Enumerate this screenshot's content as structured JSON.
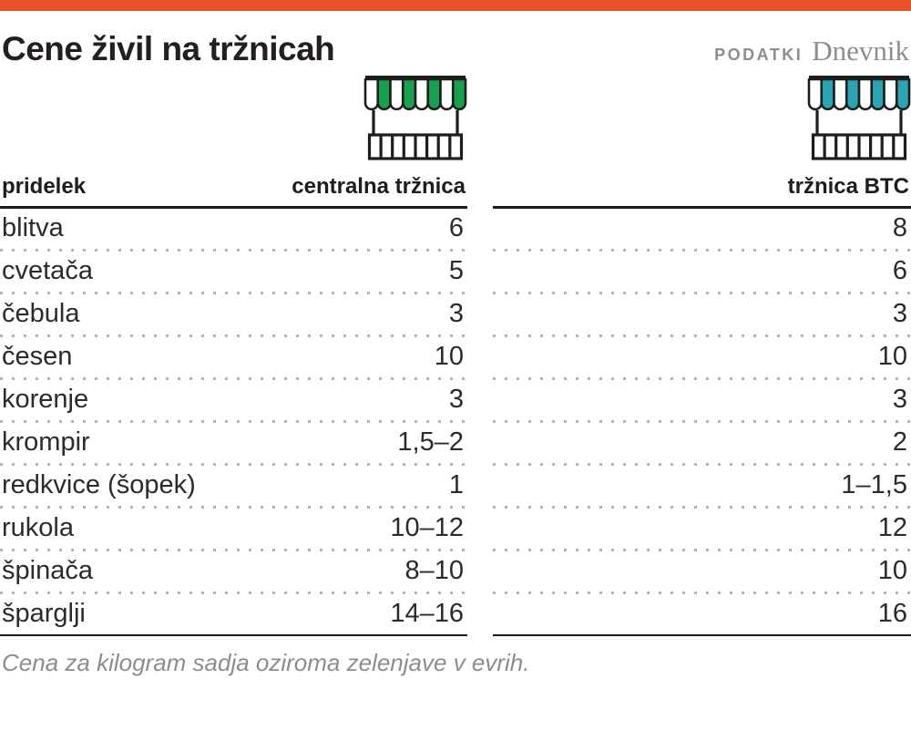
{
  "page": {
    "title": "Cene živil na tržnicah",
    "source_label": "PODATKI",
    "source_name": "Dnevnik",
    "footnote": "Cena za kilogram sadja oziroma zelenjave v evrih.",
    "accent_bar_color": "#e8512a"
  },
  "icons": {
    "central_market": {
      "name": "market-stall-icon",
      "stripe_color": "#17a14e"
    },
    "btc_market": {
      "name": "market-stall-icon",
      "stripe_color": "#2aa5b5"
    }
  },
  "table": {
    "left_header": {
      "col1": "pridelek",
      "col2": "centralna tržnica"
    },
    "right_header": {
      "col2": "tržnica BTC"
    }
  },
  "chart_data": {
    "type": "table",
    "title": "Cene živil na tržnicah",
    "columns": [
      "pridelek",
      "centralna tržnica",
      "tržnica BTC"
    ],
    "rows": [
      {
        "name": "blitva",
        "central": "6",
        "btc": "8"
      },
      {
        "name": "cvetača",
        "central": "5",
        "btc": "6"
      },
      {
        "name": "čebula",
        "central": "3",
        "btc": "3"
      },
      {
        "name": "česen",
        "central": "10",
        "btc": "10"
      },
      {
        "name": "korenje",
        "central": "3",
        "btc": "3"
      },
      {
        "name": "krompir",
        "central": "1,5–2",
        "btc": "2"
      },
      {
        "name": "redkvice (šopek)",
        "central": "1",
        "btc": "1–1,5"
      },
      {
        "name": "rukola",
        "central": "10–12",
        "btc": "12"
      },
      {
        "name": "špinača",
        "central": "8–10",
        "btc": "10"
      },
      {
        "name": "šparglji",
        "central": "14–16",
        "btc": "16"
      }
    ],
    "unit_note": "Cena za kilogram sadja oziroma zelenjave v evrih."
  }
}
